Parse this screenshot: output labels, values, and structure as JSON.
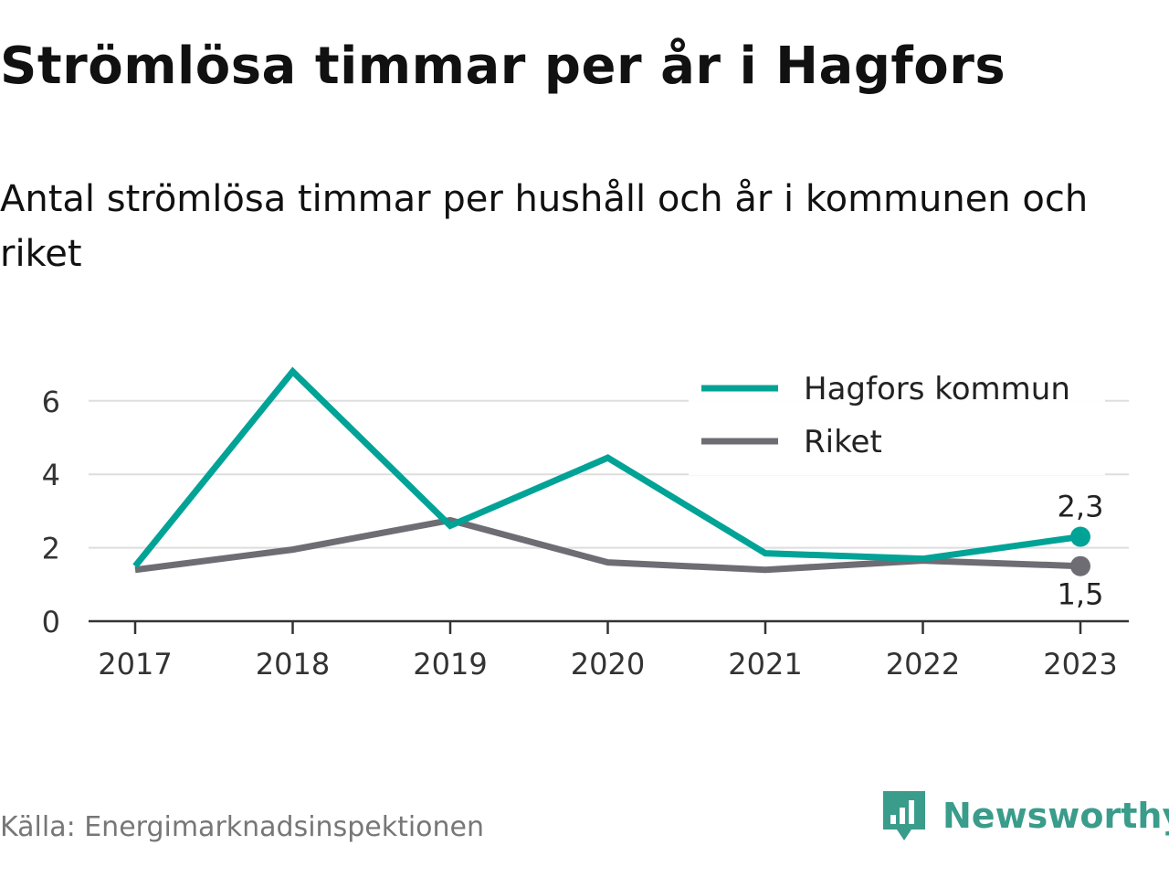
{
  "header": {
    "title": "Strömlösa timmar per år i Hagfors",
    "subtitle": "Antal strömlösa timmar per hushåll och år i kommunen och riket"
  },
  "footer": {
    "source": "Källa: Energimarknadsinspektionen",
    "brand": "Newsworthy",
    "brand_icon": "newsworthy-logo-icon",
    "brand_color": "#3a9c8a"
  },
  "chart_data": {
    "type": "line",
    "x": [
      "2017",
      "2018",
      "2019",
      "2020",
      "2021",
      "2022",
      "2023"
    ],
    "ylim": [
      0,
      7
    ],
    "yticks": [
      0,
      2,
      4,
      6
    ],
    "grid": true,
    "legend_position": "top-right",
    "series": [
      {
        "name": "Hagfors kommun",
        "color": "#00a396",
        "values": [
          1.5,
          6.8,
          2.6,
          4.45,
          1.85,
          1.7,
          2.3
        ],
        "end_label": "2,3"
      },
      {
        "name": "Riket",
        "color": "#6e6d74",
        "values": [
          1.4,
          1.95,
          2.75,
          1.6,
          1.4,
          1.65,
          1.5
        ],
        "end_label": "1,5"
      }
    ]
  }
}
